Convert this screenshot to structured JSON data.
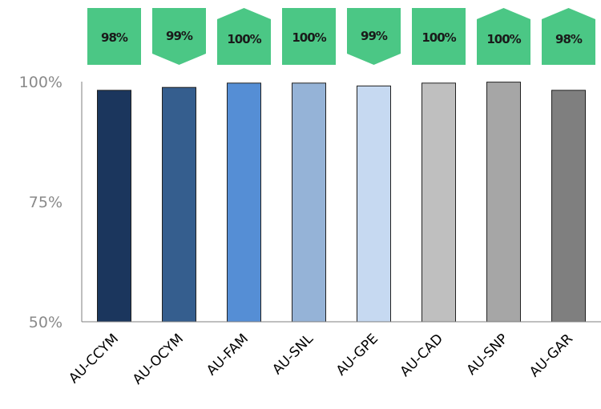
{
  "colors": {
    "badge": "#4bc785",
    "axis": "#7f7f7f",
    "tick_text": "#8a8a8a",
    "bar_outline": "#222222"
  },
  "chart_data": {
    "type": "bar",
    "categories": [
      "AU-CCYM",
      "AU-OCYM",
      "AU-FAM",
      "AU-SNL",
      "AU-GPE",
      "AU-CAD",
      "AU-SNP",
      "AU-GAR"
    ],
    "values": [
      98.2,
      98.8,
      99.7,
      99.7,
      99.1,
      99.7,
      99.9,
      98.2
    ],
    "bar_colors": [
      "#1b365d",
      "#355e8e",
      "#558ed5",
      "#95b3d7",
      "#c6d9f1",
      "#bfbfbf",
      "#a6a6a6",
      "#7f7f7f"
    ],
    "badges": [
      {
        "label": "98%",
        "shape": "square"
      },
      {
        "label": "99%",
        "shape": "chevron-down"
      },
      {
        "label": "100%",
        "shape": "chevron-up"
      },
      {
        "label": "100%",
        "shape": "square"
      },
      {
        "label": "99%",
        "shape": "chevron-down"
      },
      {
        "label": "100%",
        "shape": "square"
      },
      {
        "label": "100%",
        "shape": "chevron-up"
      },
      {
        "label": "98%",
        "shape": "chevron-up"
      }
    ],
    "ylim": [
      50,
      100
    ],
    "yticks": [
      {
        "value": 50,
        "label": "50%"
      },
      {
        "value": 75,
        "label": "75%"
      },
      {
        "value": 100,
        "label": "100%"
      }
    ],
    "grid": false,
    "title": "",
    "xlabel": "",
    "ylabel": ""
  }
}
